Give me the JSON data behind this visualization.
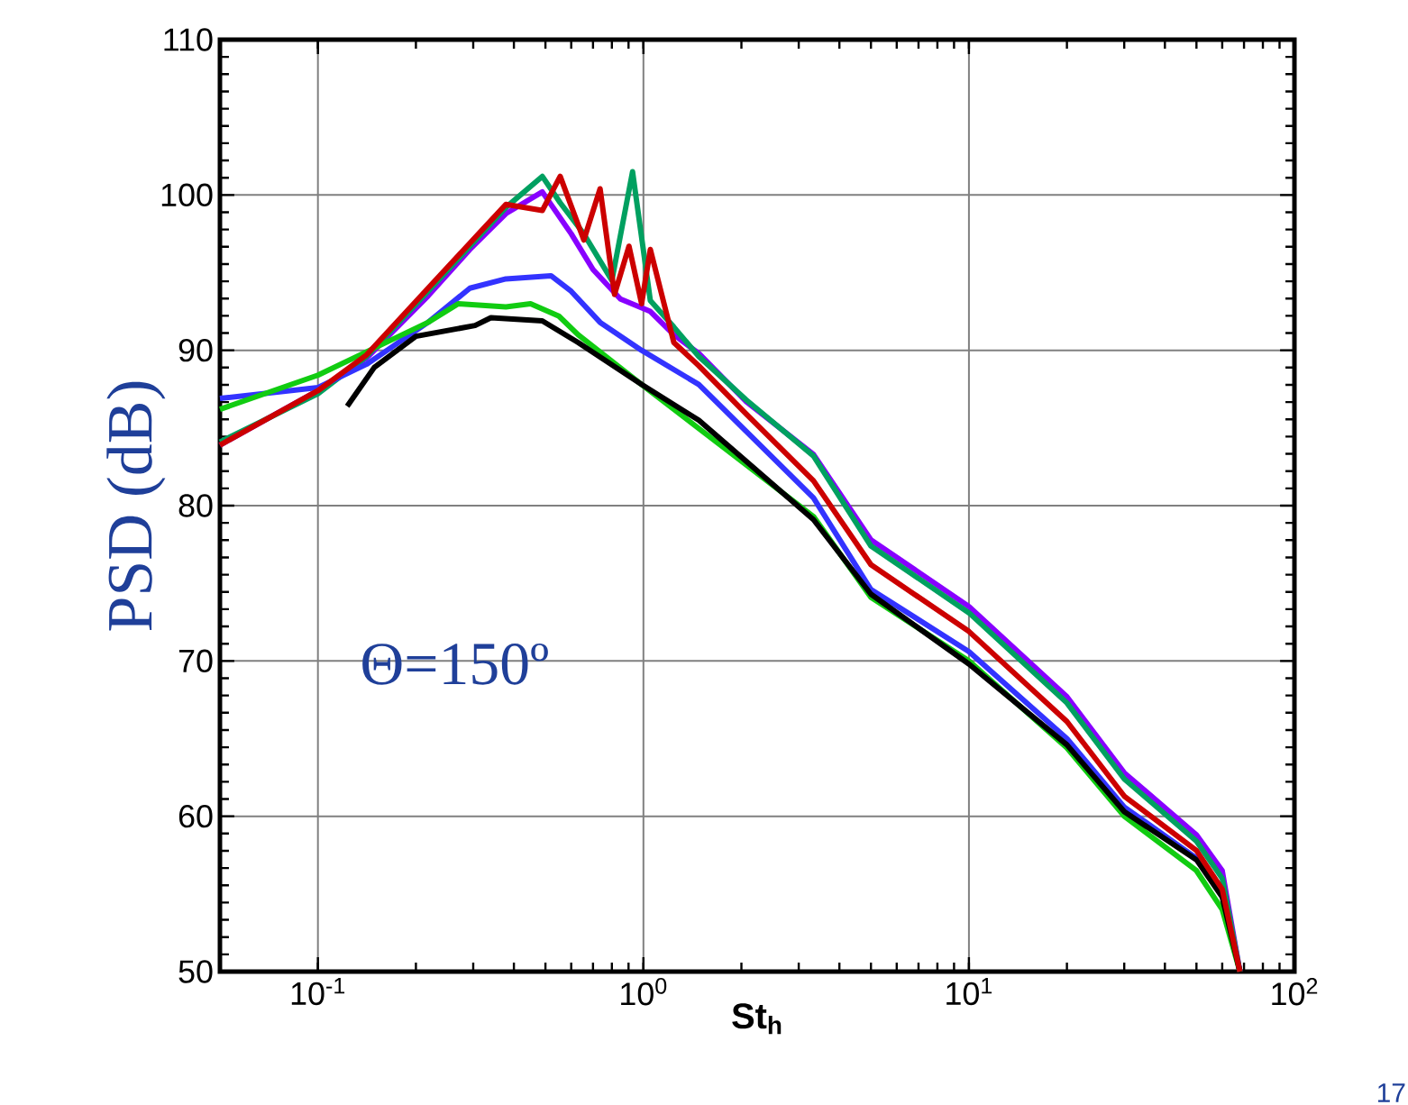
{
  "chart_data": {
    "type": "line",
    "xlabel": "St$_{h}$",
    "ylabel": "PSD (dB)",
    "annotations": [
      "Θ=150º",
      "17"
    ],
    "log": "x",
    "grid": true,
    "xlim": [
      0.05,
      100
    ],
    "ylim": [
      50,
      110
    ],
    "xticks": [
      {
        "value": 0.1,
        "label": "10$^{-1}$"
      },
      {
        "value": 1,
        "label": "10$^{0}$"
      },
      {
        "value": 10,
        "label": "10$^{1}$"
      },
      {
        "value": 100,
        "label": "10$^{2}$"
      }
    ],
    "yticks": [
      50,
      60,
      70,
      80,
      90,
      100,
      110
    ],
    "series": [
      {
        "color": "#8800ff",
        "x": [
          0.05,
          0.1,
          0.141,
          0.218,
          0.293,
          0.378,
          0.489,
          0.6,
          0.7,
          0.85,
          1.05,
          1.24,
          1.48,
          2.07,
          3.33,
          5,
          10,
          20,
          30,
          50,
          60,
          68
        ],
        "values": [
          83.9,
          87.4,
          89.5,
          93.5,
          96.5,
          98.8,
          100.2,
          97.5,
          95.2,
          93.3,
          92.5,
          91,
          89.8,
          86.7,
          83.3,
          77.8,
          73.5,
          67.7,
          62.8,
          58.8,
          56.5,
          50
        ]
      },
      {
        "color": "#00a060",
        "x": [
          0.05,
          0.1,
          0.141,
          0.218,
          0.293,
          0.378,
          0.489,
          0.555,
          0.656,
          0.8,
          0.926,
          1.05,
          1.24,
          1.48,
          2.07,
          3.33,
          5,
          10,
          20,
          30,
          50,
          60,
          68
        ],
        "values": [
          84.1,
          87.2,
          89.6,
          93.8,
          96.7,
          99.2,
          101.2,
          99.5,
          97.5,
          94.5,
          101.5,
          93.2,
          91.5,
          89.6,
          86.8,
          83.2,
          77.4,
          73.1,
          67.3,
          62.4,
          58.4,
          56,
          50
        ]
      },
      {
        "color": "#3333ff",
        "x": [
          0.05,
          0.1,
          0.141,
          0.218,
          0.293,
          0.378,
          0.52,
          0.6,
          0.736,
          0.987,
          1.48,
          3.33,
          5,
          10,
          20,
          30,
          50,
          60,
          68
        ],
        "values": [
          86.9,
          87.6,
          89.1,
          91.8,
          94,
          94.6,
          94.8,
          93.8,
          91.8,
          90,
          87.8,
          80.5,
          74.6,
          70.6,
          65,
          60.6,
          57.3,
          55,
          50
        ]
      },
      {
        "color": "#11cc11",
        "x": [
          0.05,
          0.1,
          0.141,
          0.218,
          0.27,
          0.378,
          0.45,
          0.55,
          0.63,
          0.987,
          3.33,
          5,
          10,
          20,
          30,
          50,
          60,
          68
        ],
        "values": [
          86.2,
          88.4,
          89.9,
          91.8,
          93,
          92.8,
          93,
          92.2,
          91,
          87.8,
          79.3,
          74.1,
          70,
          64.4,
          60,
          56.5,
          54,
          50
        ]
      },
      {
        "color": "#000000",
        "x": [
          0.123,
          0.149,
          0.2,
          0.304,
          0.34,
          0.489,
          0.63,
          0.987,
          1.48,
          3.33,
          5,
          10,
          20,
          30,
          50,
          60,
          68
        ],
        "values": [
          86.4,
          88.9,
          90.9,
          91.6,
          92.1,
          91.9,
          90.5,
          87.8,
          85.5,
          79.1,
          74.3,
          69.8,
          64.6,
          60.3,
          57.2,
          54.8,
          50
        ]
      },
      {
        "color": "#cc0000",
        "x": [
          0.05,
          0.1,
          0.141,
          0.218,
          0.293,
          0.378,
          0.489,
          0.555,
          0.656,
          0.736,
          0.815,
          0.903,
          0.987,
          1.05,
          1.24,
          1.48,
          2.07,
          3.33,
          5,
          10,
          20,
          30,
          50,
          60,
          68
        ],
        "values": [
          83.9,
          87.4,
          89.7,
          94,
          96.9,
          99.4,
          99,
          101.2,
          97.1,
          100.4,
          93.6,
          96.7,
          93,
          96.5,
          90.5,
          89,
          85.9,
          81.6,
          76.2,
          71.9,
          66.1,
          61.3,
          57.8,
          55.3,
          50
        ]
      }
    ]
  }
}
